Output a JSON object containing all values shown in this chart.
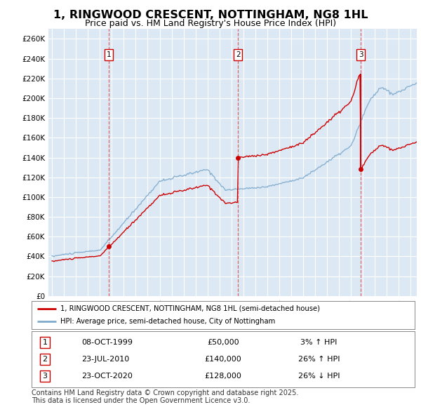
{
  "title": "1, RINGWOOD CRESCENT, NOTTINGHAM, NG8 1HL",
  "subtitle": "Price paid vs. HM Land Registry's House Price Index (HPI)",
  "title_fontsize": 11.5,
  "subtitle_fontsize": 9,
  "background_color": "#ffffff",
  "plot_bg_color": "#dce9f5",
  "grid_color": "#ffffff",
  "ylim": [
    0,
    270000
  ],
  "yticks": [
    0,
    20000,
    40000,
    60000,
    80000,
    100000,
    120000,
    140000,
    160000,
    180000,
    200000,
    220000,
    240000,
    260000
  ],
  "xlim_start": 1994.7,
  "xlim_end": 2025.5,
  "sale_dates": [
    "1999-10-08",
    "2010-07-23",
    "2020-10-23"
  ],
  "sale_prices": [
    50000,
    140000,
    128000
  ],
  "sale_labels": [
    "1",
    "2",
    "3"
  ],
  "sale_box_color": "#cc0000",
  "sale_vline_color": "#dd4444",
  "red_line_color": "#cc0000",
  "blue_line_color": "#7faacc",
  "legend_entries": [
    "1, RINGWOOD CRESCENT, NOTTINGHAM, NG8 1HL (semi-detached house)",
    "HPI: Average price, semi-detached house, City of Nottingham"
  ],
  "table_data": [
    [
      "1",
      "08-OCT-1999",
      "£50,000",
      "3% ↑ HPI"
    ],
    [
      "2",
      "23-JUL-2010",
      "£140,000",
      "26% ↑ HPI"
    ],
    [
      "3",
      "23-OCT-2020",
      "£128,000",
      "26% ↓ HPI"
    ]
  ],
  "footnote": "Contains HM Land Registry data © Crown copyright and database right 2025.\nThis data is licensed under the Open Government Licence v3.0.",
  "footnote_fontsize": 7
}
